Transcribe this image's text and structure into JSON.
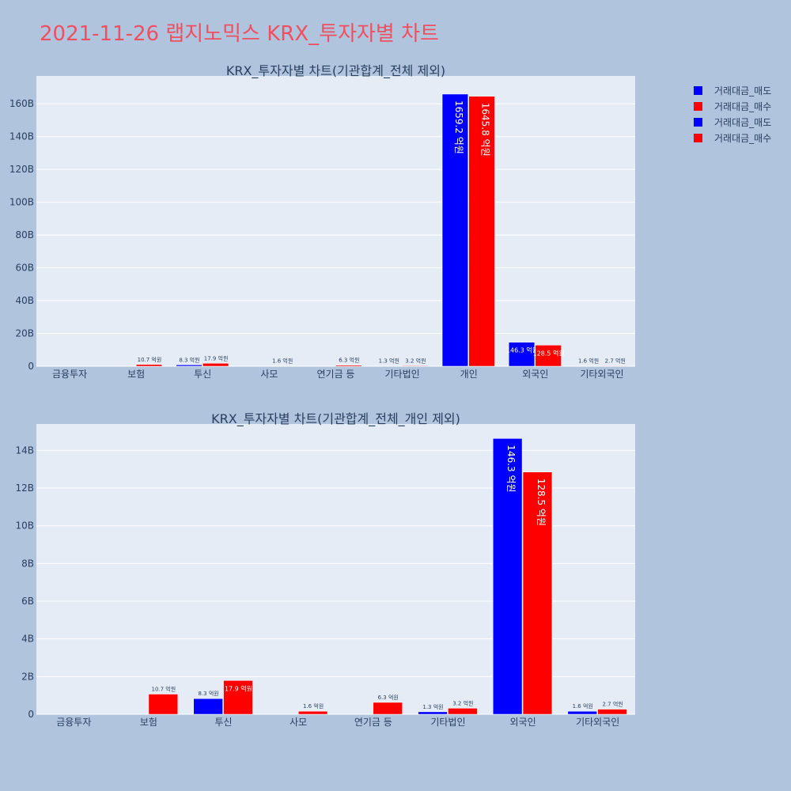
{
  "page": {
    "title": "2021-11-26 랩지노믹스 KRX_투자자별 차트",
    "background": "#b0c4de",
    "title_color": "#ef5060",
    "plot_background": "#e5ecf6"
  },
  "legend": {
    "placement": "top-right",
    "items": [
      {
        "label": "거래대금_매도",
        "color": "#0000ff"
      },
      {
        "label": "거래대금_매수",
        "color": "#ff0000"
      },
      {
        "label": "거래대금_매도",
        "color": "#0000ff"
      },
      {
        "label": "거래대금_매수",
        "color": "#ff0000"
      }
    ]
  },
  "chart_data": [
    {
      "type": "bar",
      "title": "KRX_투자자별 차트(기관합계_전체 제외)",
      "categories": [
        "금융투자",
        "보험",
        "투신",
        "사모",
        "연기금 등",
        "기타법인",
        "개인",
        "외국인",
        "기타외국인"
      ],
      "series": [
        {
          "name": "거래대금_매도",
          "color": "#0000ff",
          "values": [
            0,
            0,
            0.83,
            0,
            0,
            0.13,
            165.92,
            14.63,
            0.16
          ],
          "labels": [
            "",
            "",
            "8.3 억원",
            "",
            "",
            "1.3 억원",
            "1659.2 억원",
            "146.3 억원",
            "1.6 억원"
          ]
        },
        {
          "name": "거래대금_매수",
          "color": "#ff0000",
          "values": [
            0,
            1.07,
            1.79,
            0.16,
            0.63,
            0.32,
            164.58,
            12.85,
            0.27
          ],
          "labels": [
            "",
            "10.7 억원",
            "17.9 억원",
            "1.6 억원",
            "6.3 억원",
            "3.2 억원",
            "1645.8 억원",
            "128.5 억원",
            "2.7 억원"
          ]
        }
      ],
      "unit": "B",
      "ylim": [
        0,
        177
      ],
      "yticks": [
        0,
        20,
        40,
        60,
        80,
        100,
        120,
        140,
        160
      ],
      "ytick_labels": [
        "0",
        "20B",
        "40B",
        "60B",
        "80B",
        "100B",
        "120B",
        "140B",
        "160B"
      ],
      "grid": true
    },
    {
      "type": "bar",
      "title": "KRX_투자자별 차트(기관합계_전체_개인 제외)",
      "categories": [
        "금융투자",
        "보험",
        "투신",
        "사모",
        "연기금 등",
        "기타법인",
        "외국인",
        "기타외국인"
      ],
      "series": [
        {
          "name": "거래대금_매도",
          "color": "#0000ff",
          "values": [
            0,
            0,
            0.83,
            0,
            0,
            0.13,
            14.63,
            0.16
          ],
          "labels": [
            "",
            "",
            "8.3 억원",
            "",
            "",
            "1.3 억원",
            "146.3 억원",
            "1.6 억원"
          ]
        },
        {
          "name": "거래대금_매수",
          "color": "#ff0000",
          "values": [
            0,
            1.07,
            1.79,
            0.16,
            0.63,
            0.32,
            12.85,
            0.27
          ],
          "labels": [
            "",
            "10.7 억원",
            "17.9 억원",
            "1.6 억원",
            "6.3 억원",
            "3.2 억원",
            "128.5 억원",
            "2.7 억원"
          ]
        }
      ],
      "unit": "B",
      "ylim": [
        0,
        15.4
      ],
      "yticks": [
        0,
        2,
        4,
        6,
        8,
        10,
        12,
        14
      ],
      "ytick_labels": [
        "0",
        "2B",
        "4B",
        "6B",
        "8B",
        "10B",
        "12B",
        "14B"
      ],
      "grid": true
    }
  ]
}
